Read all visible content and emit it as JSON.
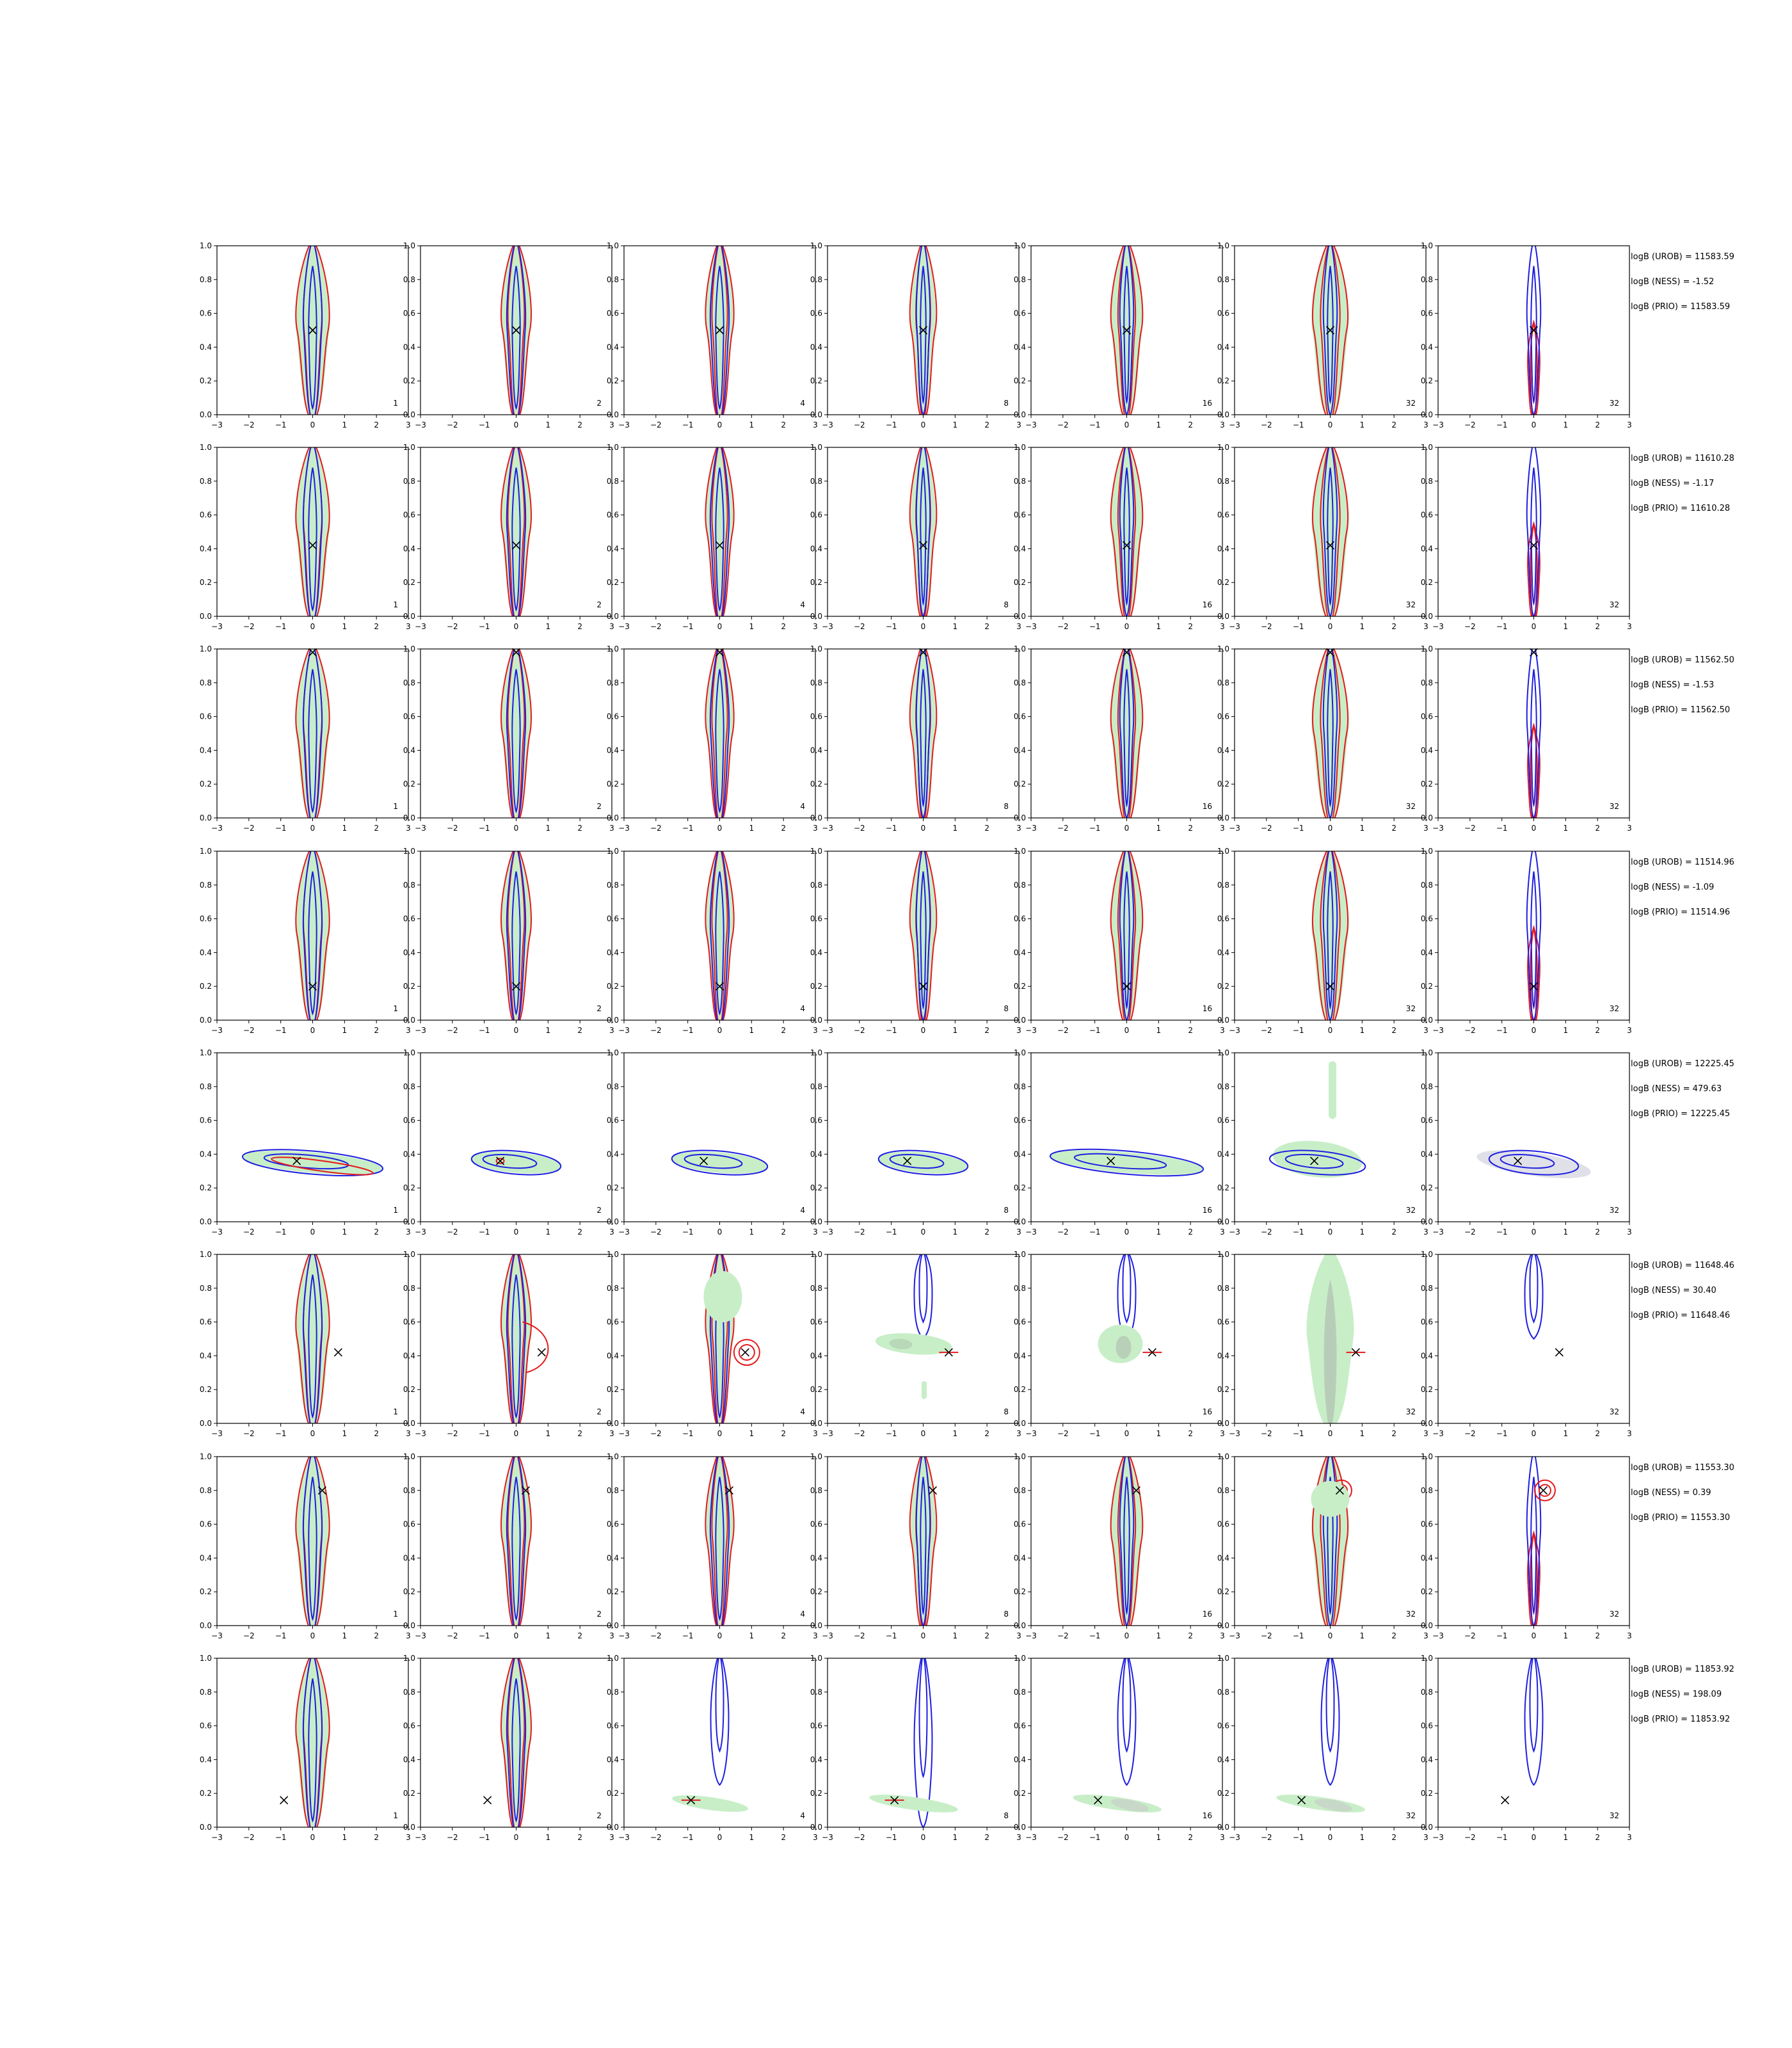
{
  "chart_data": {
    "type": "contour-grid",
    "title": "",
    "xlim": [
      -3,
      3
    ],
    "ylim": [
      0,
      1
    ],
    "xticks": [
      -3,
      -2,
      -1,
      0,
      1,
      2,
      3
    ],
    "yticks": [
      "0.0",
      "0.2",
      "0.4",
      "0.6",
      "0.8",
      "1.0"
    ],
    "column_labels": [
      "1",
      "2",
      "4",
      "8",
      "16",
      "32",
      "32"
    ],
    "series_colors": {
      "filled": "#c8eec8",
      "filled_core": "#c8c8c8",
      "red": "#e41a1c",
      "blue": "#1f1fe0",
      "marker": "#000000"
    },
    "rows": [
      {
        "truth": [
          0.0,
          0.5
        ],
        "stats": [
          "logB (UROB) = 11583.59",
          "logB (NESS) = -1.52",
          "logB (PRIO) = 11583.59"
        ]
      },
      {
        "truth": [
          0.0,
          0.42
        ],
        "stats": [
          "logB (UROB) = 11610.28",
          "logB (NESS) = -1.17",
          "logB (PRIO) = 11610.28"
        ]
      },
      {
        "truth": [
          0.0,
          0.98
        ],
        "stats": [
          "logB (UROB) = 11562.50",
          "logB (NESS) = -1.53",
          "logB (PRIO) = 11562.50"
        ]
      },
      {
        "truth": [
          0.0,
          0.2
        ],
        "stats": [
          "logB (UROB) = 11514.96",
          "logB (NESS) = -1.09",
          "logB (PRIO) = 11514.96"
        ]
      },
      {
        "truth": [
          -0.5,
          0.36
        ],
        "stats": [
          "logB (UROB) = 12225.45",
          "logB (NESS) = 479.63",
          "logB (PRIO) = 12225.45"
        ]
      },
      {
        "truth": [
          0.8,
          0.42
        ],
        "stats": [
          "logB (UROB) = 11648.46",
          "logB (NESS) = 30.40",
          "logB (PRIO) = 11648.46"
        ]
      },
      {
        "truth": [
          0.3,
          0.8
        ],
        "stats": [
          "logB (UROB) = 11553.30",
          "logB (NESS) = 0.39",
          "logB (PRIO) = 11553.30"
        ]
      },
      {
        "truth": [
          -0.9,
          0.16
        ],
        "stats": [
          "logB (UROB) = 11853.92",
          "logB (NESS) = 198.09",
          "logB (PRIO) = 11853.92"
        ]
      }
    ]
  }
}
